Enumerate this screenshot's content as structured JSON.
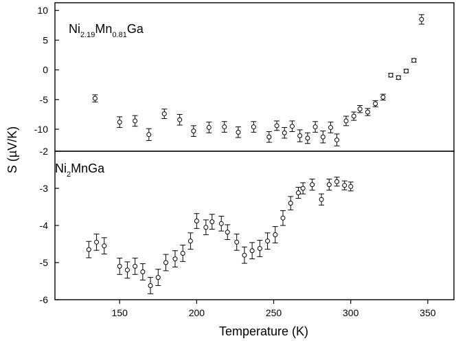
{
  "chart_data": [
    {
      "type": "scatter",
      "panel": "top",
      "label": {
        "base1": "Ni",
        "sub1": "2.19",
        "base2": "Mn",
        "sub2": "0.81",
        "base3": "Ga"
      },
      "xlim": [
        108,
        367
      ],
      "ylim": [
        -13.7,
        11.3
      ],
      "yticks": [
        10,
        5,
        0,
        -5,
        -10
      ],
      "series": [
        {
          "marker": "open-circle-with-error-bars",
          "points": [
            {
              "x": 134,
              "y": -4.8,
              "err": 0.6
            },
            {
              "x": 150,
              "y": -8.8,
              "err": 0.9
            },
            {
              "x": 160,
              "y": -8.6,
              "err": 0.9
            },
            {
              "x": 169,
              "y": -10.9,
              "err": 1.0
            },
            {
              "x": 179,
              "y": -7.4,
              "err": 0.8
            },
            {
              "x": 189,
              "y": -8.4,
              "err": 0.9
            },
            {
              "x": 198,
              "y": -10.3,
              "err": 0.9
            },
            {
              "x": 208,
              "y": -9.7,
              "err": 0.9
            },
            {
              "x": 218,
              "y": -9.6,
              "err": 0.9
            },
            {
              "x": 227,
              "y": -10.5,
              "err": 0.9
            },
            {
              "x": 237,
              "y": -9.6,
              "err": 0.9
            },
            {
              "x": 247,
              "y": -11.3,
              "err": 0.9
            },
            {
              "x": 252,
              "y": -9.4,
              "err": 0.8
            },
            {
              "x": 257,
              "y": -10.6,
              "err": 0.9
            },
            {
              "x": 262,
              "y": -9.5,
              "err": 0.9
            },
            {
              "x": 267,
              "y": -11.1,
              "err": 1.0
            },
            {
              "x": 272,
              "y": -11.5,
              "err": 0.9
            },
            {
              "x": 277,
              "y": -9.6,
              "err": 0.9
            },
            {
              "x": 282,
              "y": -11.3,
              "err": 1.0
            },
            {
              "x": 287,
              "y": -9.7,
              "err": 0.9
            },
            {
              "x": 291,
              "y": -11.8,
              "err": 1.0
            },
            {
              "x": 297,
              "y": -8.6,
              "err": 0.8
            },
            {
              "x": 302,
              "y": -7.8,
              "err": 0.7
            },
            {
              "x": 306,
              "y": -6.6,
              "err": 0.6
            },
            {
              "x": 311,
              "y": -7.1,
              "err": 0.6
            },
            {
              "x": 316,
              "y": -5.7,
              "err": 0.5
            },
            {
              "x": 321,
              "y": -4.6,
              "err": 0.5
            },
            {
              "x": 326,
              "y": -0.9,
              "err": 0.3
            },
            {
              "x": 331,
              "y": -1.3,
              "err": 0.3
            },
            {
              "x": 336,
              "y": -0.2,
              "err": 0.3
            },
            {
              "x": 341,
              "y": 1.6,
              "err": 0.3
            },
            {
              "x": 346,
              "y": 8.5,
              "err": 0.8
            }
          ]
        }
      ]
    },
    {
      "type": "scatter",
      "panel": "bottom",
      "label": {
        "base1": "Ni",
        "sub1": "2",
        "base2": "MnGa"
      },
      "xlabel": "Temperature (K)",
      "xlim": [
        108,
        367
      ],
      "xticks": [
        150,
        200,
        250,
        300,
        350
      ],
      "ylim": [
        -6.0,
        -2.0
      ],
      "yticks": [
        -2,
        -3,
        -4,
        -5,
        -6
      ],
      "series": [
        {
          "marker": "open-circle-with-error-bars",
          "points": [
            {
              "x": 130,
              "y": -4.65,
              "err": 0.22
            },
            {
              "x": 135,
              "y": -4.45,
              "err": 0.22
            },
            {
              "x": 140,
              "y": -4.55,
              "err": 0.22
            },
            {
              "x": 150,
              "y": -5.1,
              "err": 0.22
            },
            {
              "x": 155,
              "y": -5.2,
              "err": 0.22
            },
            {
              "x": 160,
              "y": -5.1,
              "err": 0.22
            },
            {
              "x": 165,
              "y": -5.25,
              "err": 0.22
            },
            {
              "x": 170,
              "y": -5.62,
              "err": 0.22
            },
            {
              "x": 175,
              "y": -5.4,
              "err": 0.22
            },
            {
              "x": 180,
              "y": -5.0,
              "err": 0.22
            },
            {
              "x": 186,
              "y": -4.9,
              "err": 0.22
            },
            {
              "x": 191,
              "y": -4.75,
              "err": 0.22
            },
            {
              "x": 196,
              "y": -4.42,
              "err": 0.22
            },
            {
              "x": 200,
              "y": -3.88,
              "err": 0.2
            },
            {
              "x": 206,
              "y": -4.05,
              "err": 0.2
            },
            {
              "x": 210,
              "y": -3.9,
              "err": 0.2
            },
            {
              "x": 216,
              "y": -3.95,
              "err": 0.2
            },
            {
              "x": 220,
              "y": -4.18,
              "err": 0.2
            },
            {
              "x": 226,
              "y": -4.45,
              "err": 0.22
            },
            {
              "x": 231,
              "y": -4.8,
              "err": 0.22
            },
            {
              "x": 236,
              "y": -4.68,
              "err": 0.22
            },
            {
              "x": 241,
              "y": -4.62,
              "err": 0.22
            },
            {
              "x": 246,
              "y": -4.42,
              "err": 0.22
            },
            {
              "x": 251,
              "y": -4.25,
              "err": 0.22
            },
            {
              "x": 256,
              "y": -3.8,
              "err": 0.2
            },
            {
              "x": 261,
              "y": -3.4,
              "err": 0.18
            },
            {
              "x": 266,
              "y": -3.12,
              "err": 0.15
            },
            {
              "x": 269,
              "y": -3.0,
              "err": 0.15
            },
            {
              "x": 275,
              "y": -2.9,
              "err": 0.15
            },
            {
              "x": 281,
              "y": -3.3,
              "err": 0.15
            },
            {
              "x": 286,
              "y": -2.9,
              "err": 0.15
            },
            {
              "x": 291,
              "y": -2.82,
              "err": 0.12
            },
            {
              "x": 296,
              "y": -2.92,
              "err": 0.12
            },
            {
              "x": 300,
              "y": -2.95,
              "err": 0.12
            }
          ]
        }
      ]
    }
  ],
  "shared": {
    "ylabel": {
      "prefix": "S (",
      "mu": "µ",
      "suffix": "V/K)"
    }
  }
}
